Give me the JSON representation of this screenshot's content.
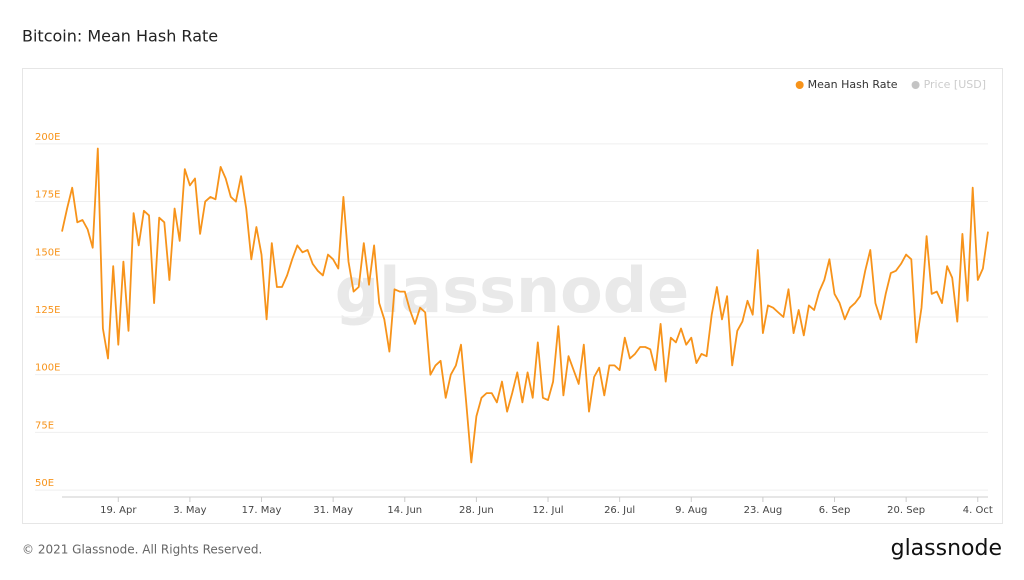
{
  "chart_data": {
    "type": "line",
    "title": "Bitcoin: Mean Hash Rate",
    "categories": [
      null,
      null,
      null,
      null,
      null,
      null,
      null,
      null,
      null,
      null,
      null,
      "19. Apr",
      null,
      null,
      null,
      null,
      null,
      null,
      null,
      null,
      null,
      null,
      null,
      null,
      null,
      "3. May",
      null,
      null,
      null,
      null,
      null,
      null,
      null,
      null,
      null,
      null,
      null,
      null,
      null,
      "17. May",
      null,
      null,
      null,
      null,
      null,
      null,
      null,
      null,
      null,
      null,
      null,
      null,
      null,
      "31. May",
      null,
      null,
      null,
      null,
      null,
      null,
      null,
      null,
      null,
      null,
      null,
      null,
      null,
      "14. Jun",
      null,
      null,
      null,
      null,
      null,
      null,
      null,
      null,
      null,
      null,
      null,
      null,
      null,
      "28. Jun",
      null,
      null,
      null,
      null,
      null,
      null,
      null,
      null,
      null,
      null,
      null,
      null,
      null,
      "12. Jul",
      null,
      null,
      null,
      null,
      null,
      null,
      null,
      null,
      null,
      null,
      null,
      null,
      null,
      "26. Jul",
      null,
      null,
      null,
      null,
      null,
      null,
      null,
      null,
      null,
      null,
      null,
      null,
      null,
      "9. Aug",
      null,
      null,
      null,
      null,
      null,
      null,
      null,
      null,
      null,
      null,
      null,
      null,
      null,
      "23. Aug",
      null,
      null,
      null,
      null,
      null,
      null,
      null,
      null,
      null,
      null,
      null,
      null,
      null,
      "6. Sep",
      null,
      null,
      null,
      null,
      null,
      null,
      null,
      null,
      null,
      null,
      null,
      null,
      null,
      "20. Sep",
      null,
      null,
      null,
      null,
      null,
      null,
      null,
      null,
      null,
      null,
      null,
      null,
      null,
      "4. Oct",
      null,
      null
    ],
    "series": [
      {
        "name": "Mean Hash Rate",
        "color": "#f7931a",
        "values": [
          162,
          172,
          181,
          166,
          167,
          163,
          155,
          198,
          120,
          107,
          147,
          113,
          149,
          119,
          170,
          156,
          171,
          169,
          131,
          168,
          166,
          141,
          172,
          158,
          189,
          182,
          185,
          161,
          175,
          177,
          176,
          190,
          185,
          177,
          175,
          186,
          172,
          150,
          164,
          152,
          124,
          157,
          138,
          138,
          143,
          150,
          156,
          153,
          154,
          148,
          145,
          143,
          152,
          150,
          146,
          177,
          149,
          136,
          138,
          157,
          139,
          156,
          131,
          124,
          110,
          137,
          136,
          136,
          128,
          122,
          129,
          127,
          100,
          104,
          106,
          90,
          100,
          104,
          113,
          88,
          62,
          82,
          90,
          92,
          92,
          88,
          97,
          84,
          92,
          101,
          88,
          101,
          90,
          114,
          90,
          89,
          97,
          121,
          91,
          108,
          102,
          96,
          113,
          84,
          99,
          103,
          91,
          104,
          104,
          102,
          116,
          107,
          109,
          112,
          112,
          111,
          102,
          122,
          97,
          116,
          114,
          120,
          113,
          116,
          105,
          109,
          108,
          126,
          138,
          124,
          134,
          104,
          119,
          123,
          132,
          126,
          154,
          118,
          130,
          129,
          127,
          125,
          137,
          118,
          128,
          117,
          130,
          128,
          136,
          141,
          150,
          135,
          131,
          124,
          129,
          131,
          134,
          145,
          154,
          131,
          124,
          135,
          144,
          145,
          148,
          152,
          150,
          114,
          129,
          160,
          135,
          136,
          131,
          147,
          142,
          123,
          161,
          132,
          181,
          141,
          146,
          162
        ]
      }
    ],
    "hidden_series": {
      "name": "Price [USD]",
      "color": "#8a8a8a"
    },
    "ylim": [
      47,
      232
    ],
    "yticks": [
      {
        "value": 50,
        "label": "50E"
      },
      {
        "value": 75,
        "label": "75E"
      },
      {
        "value": 100,
        "label": "100E"
      },
      {
        "value": 125,
        "label": "125E"
      },
      {
        "value": 150,
        "label": "150E"
      },
      {
        "value": 175,
        "label": "175E"
      },
      {
        "value": 200,
        "label": "200E"
      }
    ],
    "grid": true
  },
  "watermark": "glassnode",
  "footer": "© 2021 Glassnode. All Rights Reserved.",
  "logo": "glassnode"
}
